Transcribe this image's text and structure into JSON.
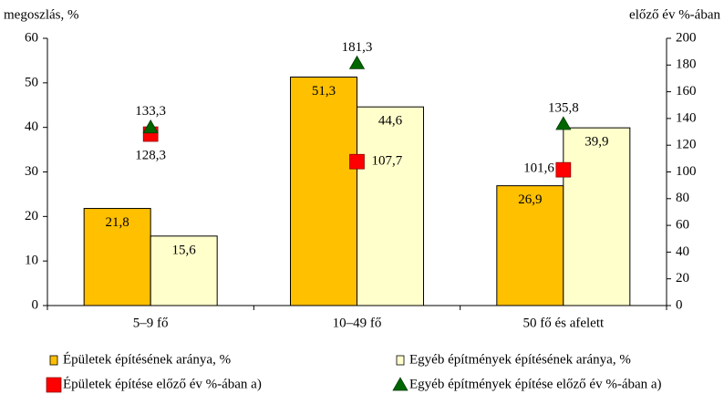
{
  "chart_data": {
    "type": "bar",
    "y_label": "megoszlás, %",
    "y2_label": "előző év %-ában",
    "categories": [
      "5–9 fő",
      "10–49 fő",
      "50 fő és afelett"
    ],
    "ylim": [
      0,
      60
    ],
    "yticks": [
      0,
      10,
      20,
      30,
      40,
      50,
      60
    ],
    "y2lim": [
      0,
      200
    ],
    "y2ticks": [
      0,
      20,
      40,
      60,
      80,
      100,
      120,
      140,
      160,
      180,
      200
    ],
    "series": [
      {
        "name": "Épületek építésének aránya, %",
        "color": "#FFC000",
        "values": [
          21.8,
          51.3,
          26.9
        ],
        "value_labels": [
          "21,8",
          "51,3",
          "26,9"
        ]
      },
      {
        "name": "Egyéb építmények építésének aránya, %",
        "color": "#FFFFCC",
        "values": [
          15.6,
          44.6,
          39.9
        ],
        "value_labels": [
          "15,6",
          "44,6",
          "39,9"
        ]
      },
      {
        "name": "Épületek építése előző év %-ában a)",
        "color": "#FF0000",
        "marker": "square",
        "axis": "y2",
        "values": [
          128.3,
          107.7,
          101.6
        ],
        "value_labels": [
          "128,3",
          "107,7",
          "101,6"
        ]
      },
      {
        "name": "Egyéb építmények építése előző év %-ában a)",
        "color": "#006600",
        "marker": "triangle",
        "axis": "y2",
        "values": [
          133.3,
          181.3,
          135.8
        ],
        "value_labels": [
          "133,3",
          "181,3",
          "135,8"
        ]
      }
    ]
  }
}
